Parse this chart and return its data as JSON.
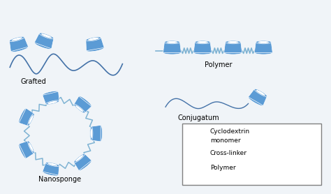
{
  "bg_color": "#f0f4f8",
  "border_color": "#5b9bd5",
  "cd_color": "#5b9bd5",
  "cd_light": "#d6e8f7",
  "cd_white": "#ffffff",
  "crosslinker_color": "#7fb3d3",
  "polymer_color": "#4472a8",
  "labels": {
    "grafted": "Grafted",
    "polymer": "Polymer",
    "conjugatum": "Conjugatum",
    "nanosponge": "Nanosponge"
  },
  "legend": {
    "title1": "Cyclodextrin",
    "title2": "monomer",
    "title3": "Cross-linker",
    "title4": "Polymer"
  },
  "figsize": [
    4.74,
    2.78
  ],
  "dpi": 100
}
